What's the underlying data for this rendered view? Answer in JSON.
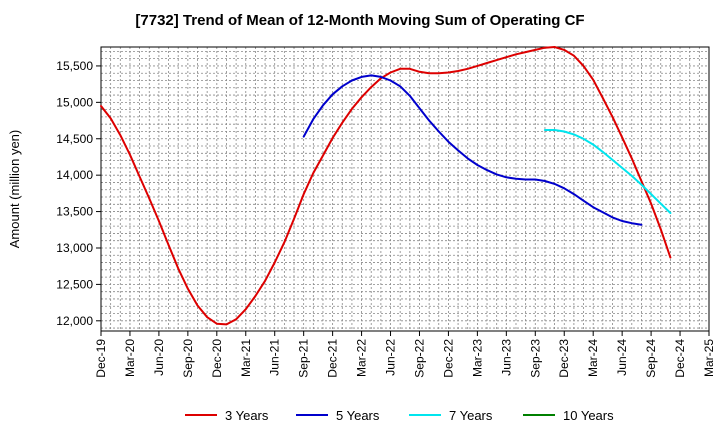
{
  "chart_data": {
    "type": "line",
    "title": "[7732]  Trend of Mean of 12-Month Moving Sum of Operating CF",
    "xlabel": "",
    "ylabel": "Amount (million yen)",
    "x_ticks": [
      "Dec-19",
      "Mar-20",
      "Jun-20",
      "Sep-20",
      "Dec-20",
      "Mar-21",
      "Jun-21",
      "Sep-21",
      "Dec-21",
      "Mar-22",
      "Jun-22",
      "Sep-22",
      "Dec-22",
      "Mar-23",
      "Jun-23",
      "Sep-23",
      "Dec-23",
      "Mar-24",
      "Jun-24",
      "Sep-24",
      "Dec-24",
      "Mar-25"
    ],
    "y_ticks": [
      12000,
      12500,
      13000,
      13500,
      14000,
      14500,
      15000,
      15500
    ],
    "y_tick_labels": [
      "12,000",
      "12,500",
      "13,000",
      "13,500",
      "14,000",
      "14,500",
      "15,000",
      "15,500"
    ],
    "ylim": [
      11860,
      15760
    ],
    "grid": true,
    "legend_position": "bottom",
    "series": [
      {
        "name": "3 Years",
        "color": "#dd0000",
        "start_month_index": 0,
        "values": [
          14950,
          14780,
          14550,
          14280,
          13980,
          13680,
          13370,
          13040,
          12720,
          12440,
          12210,
          12050,
          11960,
          11950,
          12020,
          12160,
          12340,
          12550,
          12800,
          13080,
          13400,
          13740,
          14030,
          14270,
          14510,
          14720,
          14910,
          15070,
          15210,
          15330,
          15410,
          15460,
          15460,
          15420,
          15400,
          15400,
          15410,
          15430,
          15460,
          15500,
          15540,
          15580,
          15620,
          15660,
          15690,
          15720,
          15750,
          15760,
          15720,
          15640,
          15500,
          15310,
          15060,
          14800,
          14520,
          14230,
          13920,
          13610,
          13260,
          12870
        ]
      },
      {
        "name": "5 Years",
        "color": "#0000cc",
        "start_month_index": 21,
        "values": [
          14530,
          14770,
          14960,
          15110,
          15220,
          15300,
          15350,
          15370,
          15350,
          15300,
          15220,
          15090,
          14920,
          14750,
          14600,
          14460,
          14340,
          14230,
          14140,
          14070,
          14010,
          13970,
          13950,
          13940,
          13940,
          13920,
          13880,
          13820,
          13740,
          13650,
          13560,
          13490,
          13420,
          13370,
          13340,
          13320
        ]
      },
      {
        "name": "7 Years",
        "color": "#00e5ee",
        "start_month_index": 46,
        "values": [
          14620,
          14620,
          14600,
          14560,
          14500,
          14420,
          14320,
          14210,
          14100,
          13990,
          13870,
          13740,
          13610,
          13480
        ]
      },
      {
        "name": "10 Years",
        "color": "#008000",
        "start_month_index": 0,
        "values": []
      }
    ]
  }
}
